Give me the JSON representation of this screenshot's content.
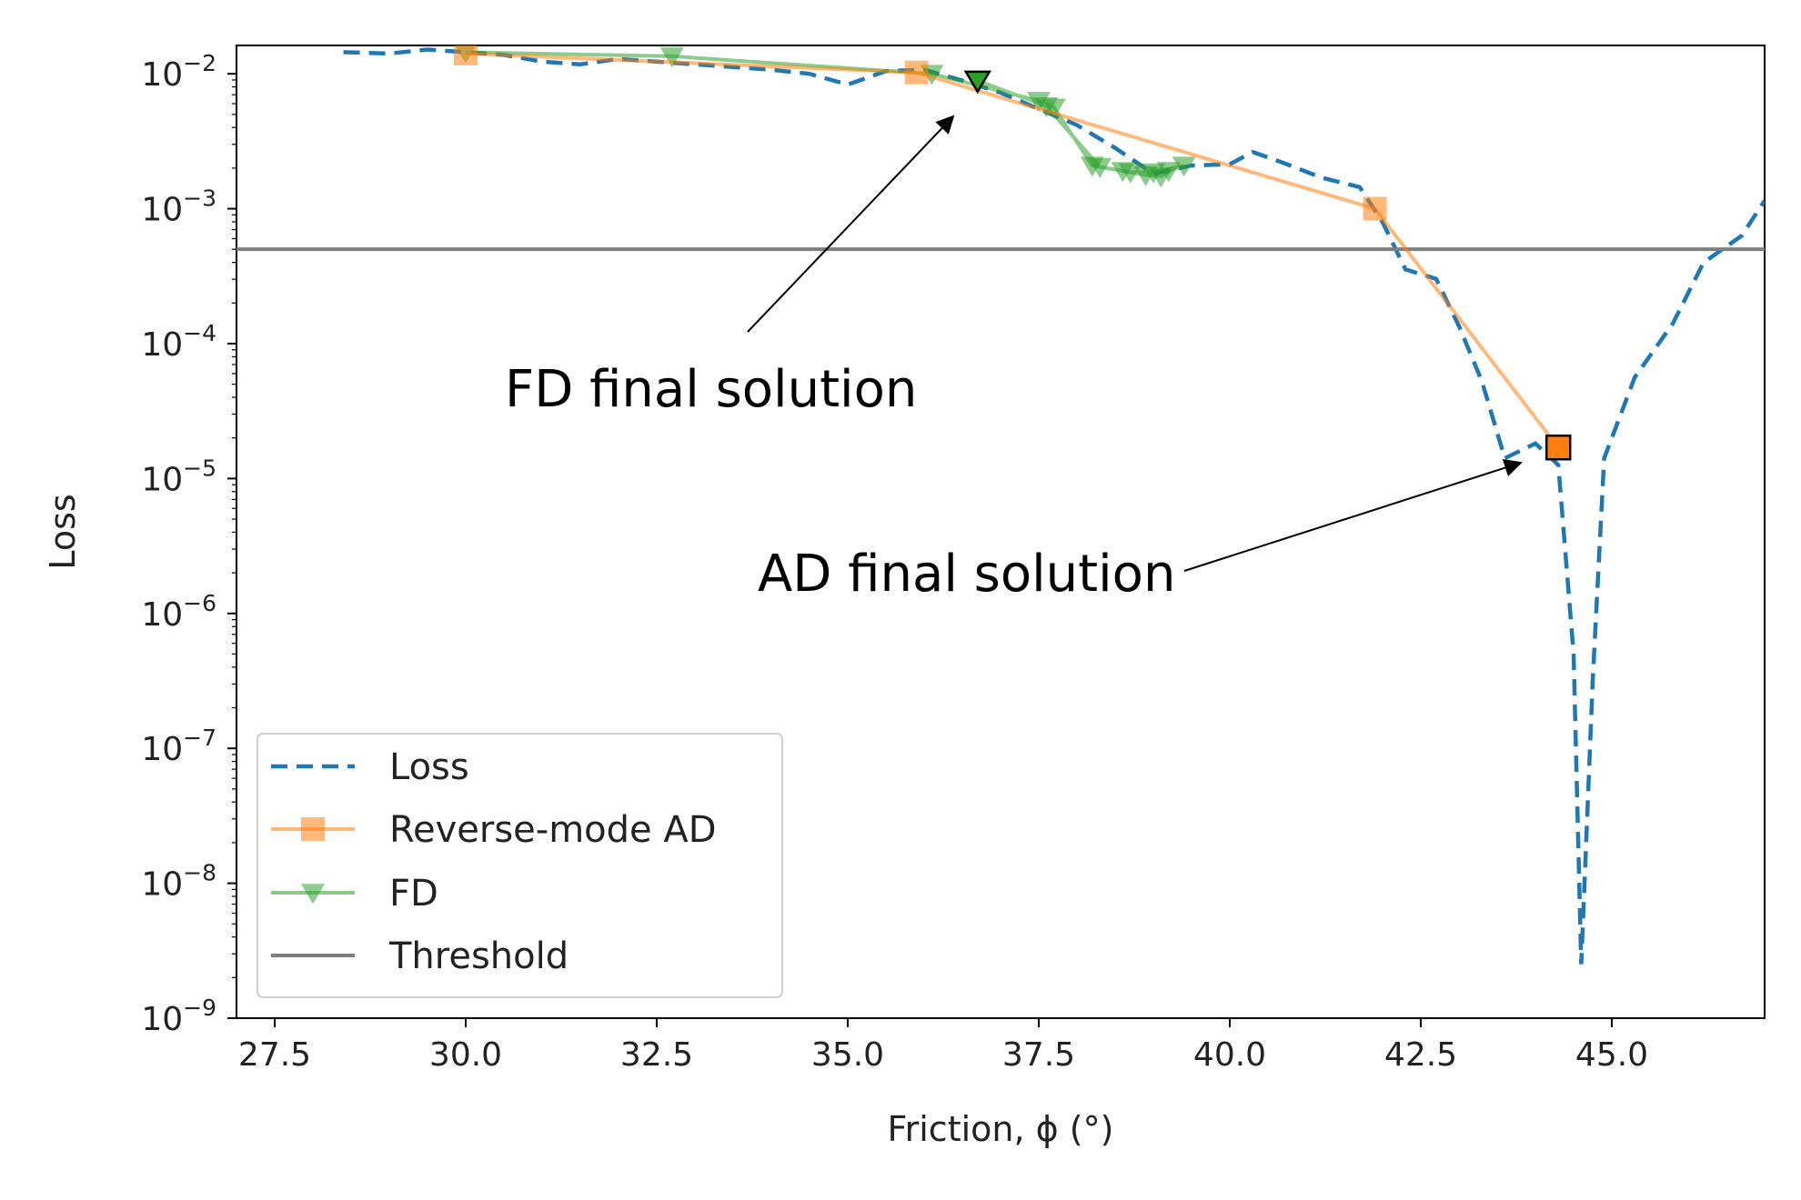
{
  "chart_data": {
    "type": "line",
    "title": "",
    "xlabel": "Friction, ϕ (°)",
    "ylabel": "Loss",
    "xlim": [
      27.0,
      47.0
    ],
    "ylim_exponent": [
      -9,
      -1.79
    ],
    "y_scale": "log",
    "x_ticks": [
      27.5,
      30.0,
      32.5,
      35.0,
      37.5,
      40.0,
      42.5,
      45.0
    ],
    "x_tick_labels": [
      "27.5",
      "30.0",
      "32.5",
      "35.0",
      "37.5",
      "40.0",
      "42.5",
      "45.0"
    ],
    "y_tick_exponents": [
      -2,
      -3,
      -4,
      -5,
      -6,
      -7,
      -8,
      -9
    ],
    "y_tick_labels": [
      "10",
      "10",
      "10",
      "10",
      "10",
      "10",
      "10",
      "10"
    ],
    "y_tick_powers": [
      "−2",
      "−3",
      "−4",
      "−5",
      "−6",
      "−7",
      "−8",
      "−9"
    ],
    "series": [
      {
        "name": "Loss",
        "color": "#1f77b4",
        "style": "dashed",
        "points": [
          [
            28.4,
            -1.84
          ],
          [
            29.0,
            -1.85
          ],
          [
            29.5,
            -1.82
          ],
          [
            30.0,
            -1.84
          ],
          [
            30.5,
            -1.86
          ],
          [
            31.0,
            -1.91
          ],
          [
            31.5,
            -1.93
          ],
          [
            32.0,
            -1.89
          ],
          [
            32.5,
            -1.91
          ],
          [
            33.0,
            -1.93
          ],
          [
            33.5,
            -1.95
          ],
          [
            34.0,
            -1.97
          ],
          [
            34.5,
            -2.0
          ],
          [
            35.0,
            -2.08
          ],
          [
            35.5,
            -1.98
          ],
          [
            36.0,
            -1.97
          ],
          [
            36.5,
            -2.05
          ],
          [
            37.0,
            -2.14
          ],
          [
            37.5,
            -2.26
          ],
          [
            38.0,
            -2.38
          ],
          [
            38.5,
            -2.55
          ],
          [
            39.0,
            -2.74
          ],
          [
            39.5,
            -2.68
          ],
          [
            40.0,
            -2.67
          ],
          [
            40.3,
            -2.58
          ],
          [
            40.7,
            -2.66
          ],
          [
            41.2,
            -2.77
          ],
          [
            41.7,
            -2.84
          ],
          [
            42.0,
            -3.1
          ],
          [
            42.3,
            -3.45
          ],
          [
            42.7,
            -3.52
          ],
          [
            43.0,
            -3.87
          ],
          [
            43.3,
            -4.28
          ],
          [
            43.6,
            -4.85
          ],
          [
            44.0,
            -4.74
          ],
          [
            44.3,
            -4.9
          ],
          [
            44.5,
            -6.3
          ],
          [
            44.6,
            -8.6
          ],
          [
            44.75,
            -6.5
          ],
          [
            44.9,
            -4.85
          ],
          [
            45.3,
            -4.25
          ],
          [
            45.8,
            -3.85
          ],
          [
            46.2,
            -3.4
          ],
          [
            46.7,
            -3.2
          ],
          [
            47.0,
            -2.94
          ]
        ]
      },
      {
        "name": "Reverse-mode AD",
        "color": "#ff7f0e",
        "style": "solid-square",
        "points": [
          [
            30.0,
            -1.85
          ],
          [
            35.9,
            -1.99
          ],
          [
            41.9,
            -3.0
          ],
          [
            44.3,
            -4.77
          ]
        ]
      },
      {
        "name": "FD",
        "color": "#2ca02c",
        "style": "solid-triangle",
        "points": [
          [
            30.0,
            -1.84
          ],
          [
            32.7,
            -1.87
          ],
          [
            36.1,
            -2.0
          ],
          [
            37.5,
            -2.2
          ],
          [
            37.7,
            -2.25
          ],
          [
            38.2,
            -2.68
          ],
          [
            38.6,
            -2.72
          ],
          [
            38.9,
            -2.75
          ],
          [
            39.1,
            -2.76
          ],
          [
            39.2,
            -2.72
          ],
          [
            39.4,
            -2.68
          ],
          [
            39.0,
            -2.73
          ],
          [
            38.7,
            -2.73
          ],
          [
            38.3,
            -2.69
          ],
          [
            37.6,
            -2.24
          ],
          [
            36.7,
            -2.05
          ]
        ]
      },
      {
        "name": "Threshold",
        "color": "#7f7f7f",
        "style": "hline",
        "y_exponent": -3.3
      }
    ],
    "highlights": {
      "fd_final": [
        36.7,
        -2.05
      ],
      "ad_final": [
        44.3,
        -4.77
      ]
    },
    "annotations": [
      {
        "id": "fd",
        "text": "FD final solution"
      },
      {
        "id": "ad",
        "text": "AD final solution"
      }
    ],
    "legend": {
      "placement": "lower-left",
      "entries": [
        "Loss",
        "Reverse-mode AD",
        "FD",
        "Threshold"
      ]
    }
  }
}
